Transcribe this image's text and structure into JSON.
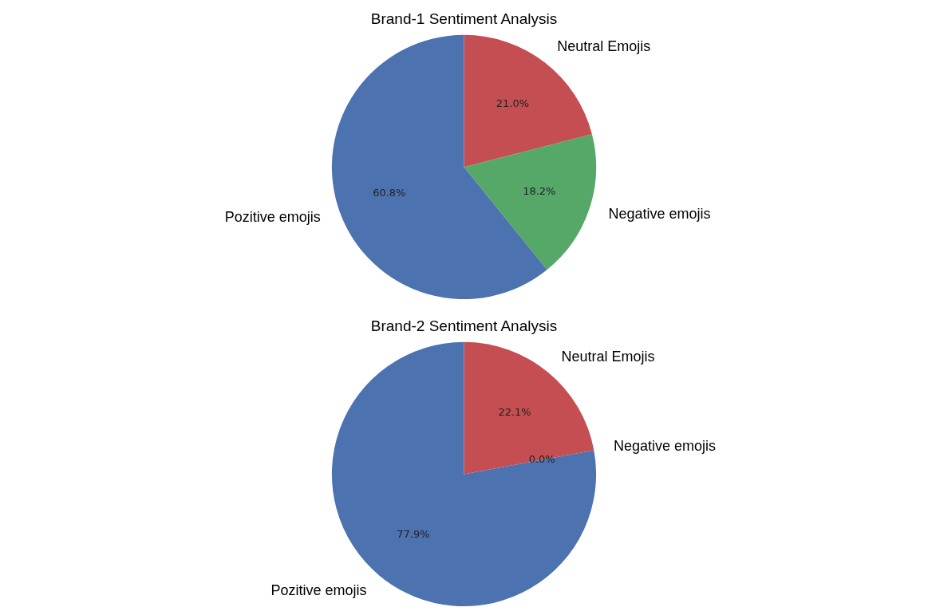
{
  "chart_data": [
    {
      "type": "pie",
      "title": "Brand-1 Sentiment Analysis",
      "categories": [
        "Neutral Emojis",
        "Negative emojis",
        "Pozitive emojis"
      ],
      "values": [
        21.0,
        18.2,
        60.8
      ],
      "value_labels": [
        "21.0%",
        "18.2%",
        "60.8%"
      ],
      "colors": [
        "#c44e52",
        "#55a868",
        "#4c72b0"
      ]
    },
    {
      "type": "pie",
      "title": "Brand-2 Sentiment Analysis",
      "categories": [
        "Neutral Emojis",
        "Negative emojis",
        "Pozitive emojis"
      ],
      "values": [
        22.1,
        0.0,
        77.9
      ],
      "value_labels": [
        "22.1%",
        "0.0%",
        "77.9%"
      ],
      "colors": [
        "#c44e52",
        "#55a868",
        "#4c72b0"
      ]
    }
  ]
}
